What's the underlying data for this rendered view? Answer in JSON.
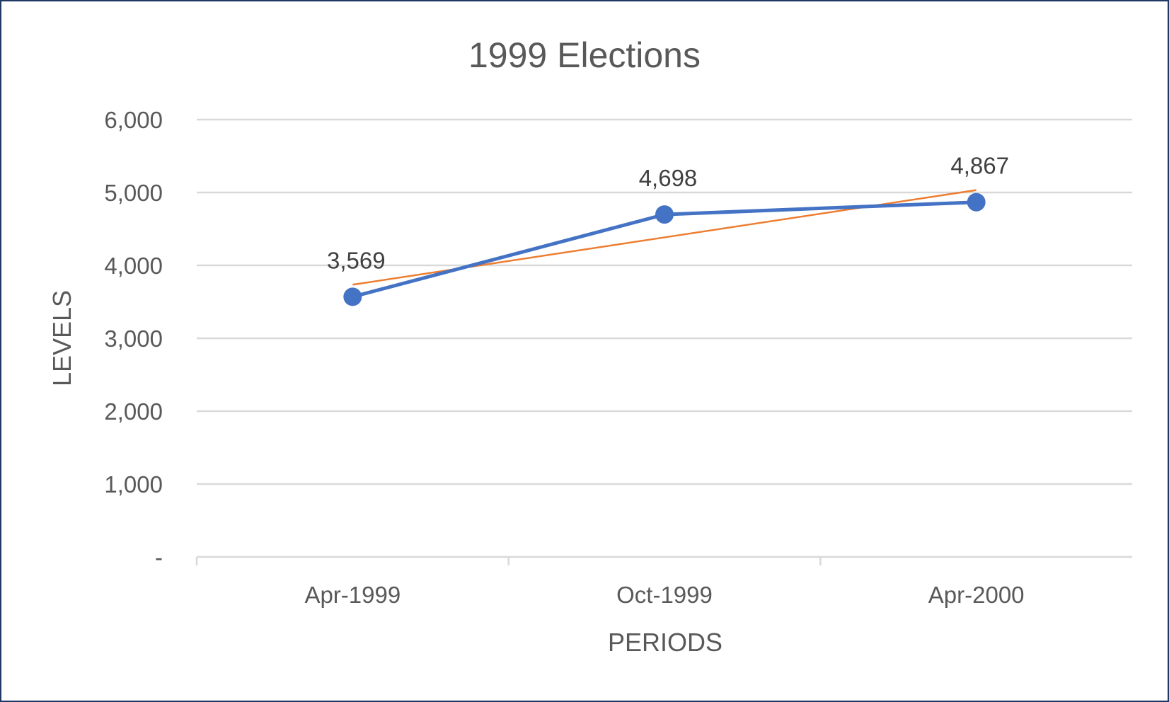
{
  "chart_data": {
    "type": "line",
    "title": "1999 Elections",
    "xlabel": "PERIODS",
    "ylabel": "LEVELS",
    "categories": [
      "Apr-1999",
      "Oct-1999",
      "Apr-2000"
    ],
    "series": [
      {
        "values": [
          3569,
          4698,
          4867
        ],
        "data_labels": [
          "3,569",
          "4,698",
          "4,867"
        ],
        "color": "#4472c4",
        "marker": "circle"
      }
    ],
    "trendline": {
      "type": "linear",
      "values": [
        3735,
        4384,
        5033
      ],
      "color": "#ed7d31"
    },
    "ylim": [
      0,
      6000
    ],
    "yticks": [
      0,
      1000,
      2000,
      3000,
      4000,
      5000,
      6000
    ],
    "ytick_labels": [
      "-",
      "1,000",
      "2,000",
      "3,000",
      "4,000",
      "5,000",
      "6,000"
    ],
    "grid": true,
    "legend": "none"
  }
}
